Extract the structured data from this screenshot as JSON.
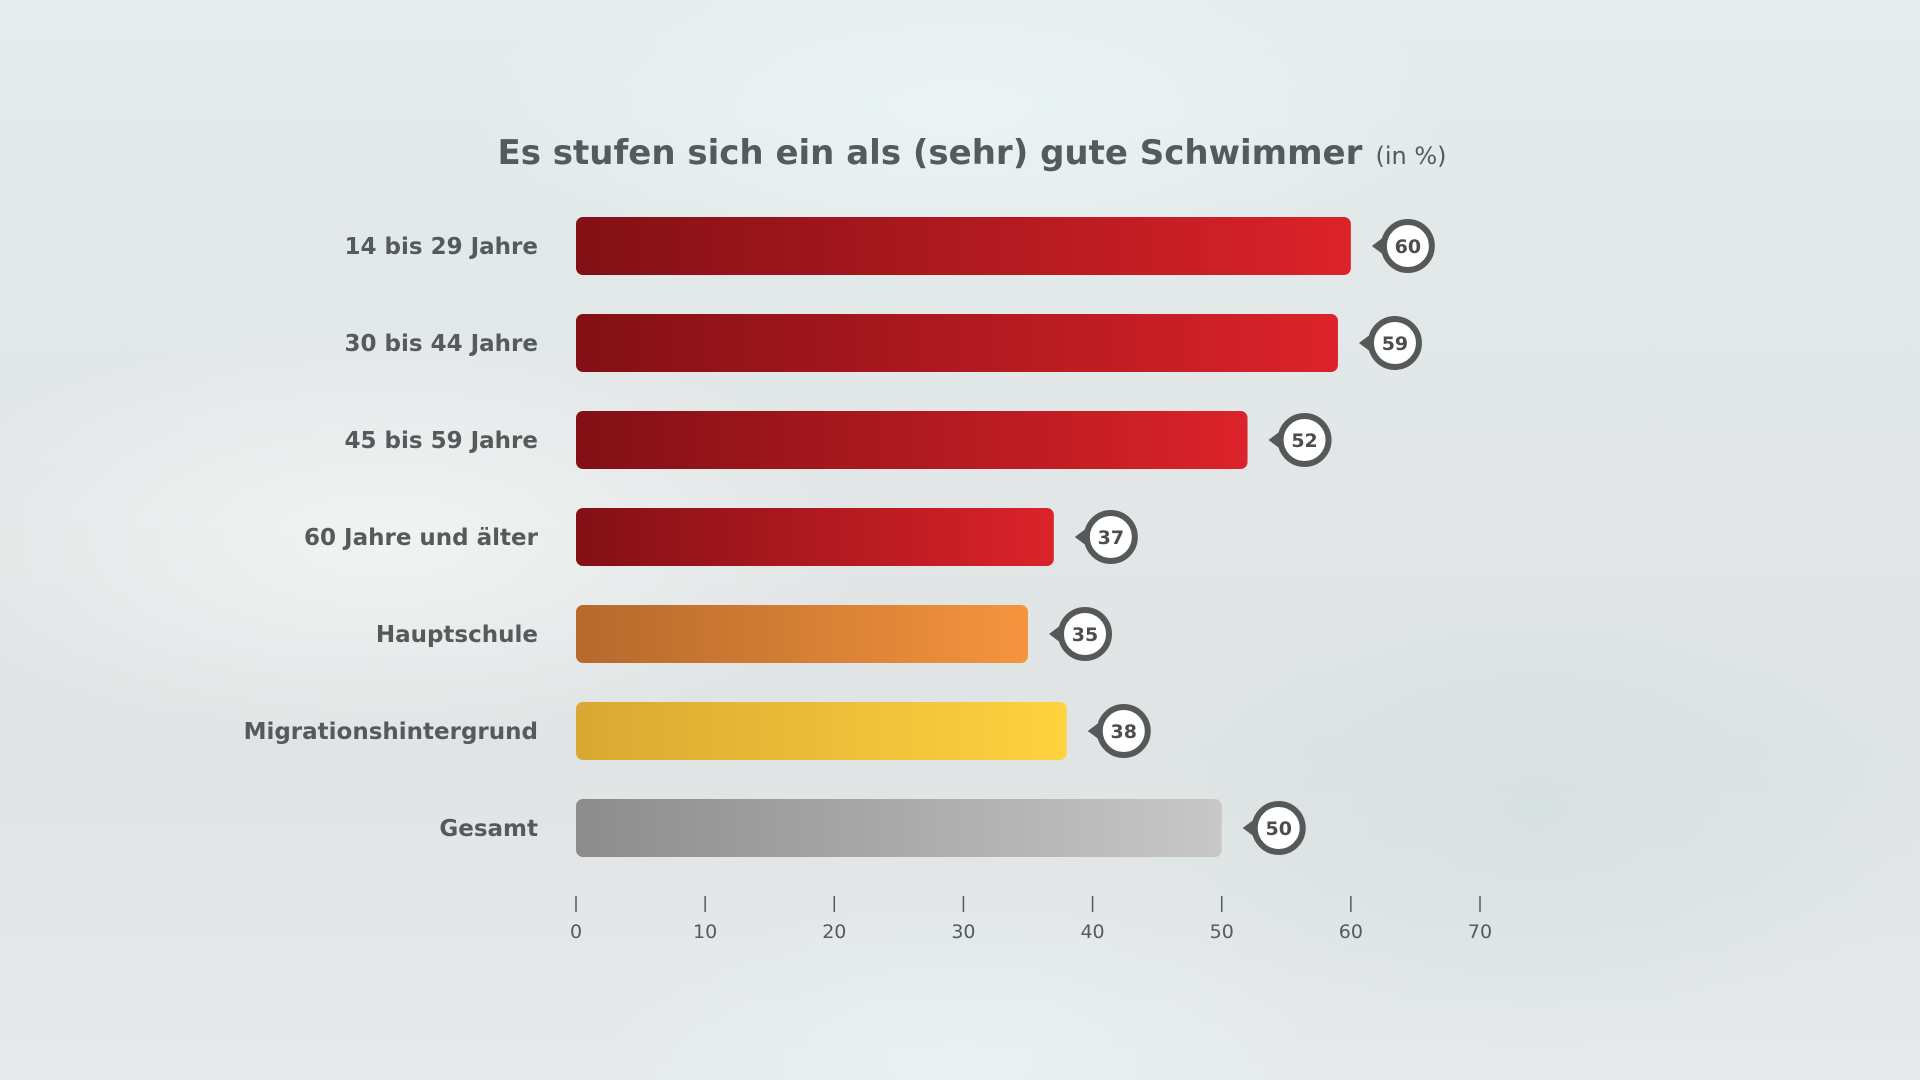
{
  "chart_data": {
    "type": "bar",
    "orientation": "horizontal",
    "title": "Es stufen sich ein als (sehr) gute Schwimmer",
    "title_suffix": "(in %)",
    "categories": [
      "14 bis 29 Jahre",
      "30 bis 44 Jahre",
      "45 bis 59 Jahre",
      "60 Jahre und älter",
      "Hauptschule",
      "Migrationshintergrund",
      "Gesamt"
    ],
    "values": [
      60,
      59,
      52,
      37,
      35,
      38,
      50
    ],
    "value_labels": [
      "60",
      "59",
      "52",
      "37",
      "35",
      "38",
      "50"
    ],
    "bar_colors": [
      [
        "#821015",
        "#dc222a"
      ],
      [
        "#821015",
        "#dc222a"
      ],
      [
        "#821015",
        "#dc222a"
      ],
      [
        "#821015",
        "#dc222a"
      ],
      [
        "#b5692c",
        "#f5943e"
      ],
      [
        "#d9a832",
        "#ffd23f"
      ],
      [
        "#8c8c8c",
        "#c8c8c8"
      ]
    ],
    "xlim": [
      0,
      70
    ],
    "xticks": [
      0,
      10,
      20,
      30,
      40,
      50,
      60,
      70
    ],
    "xtick_labels": [
      "0",
      "10",
      "20",
      "30",
      "40",
      "50",
      "60",
      "70"
    ],
    "grid": false,
    "legend": "none",
    "xlabel": "",
    "ylabel": ""
  }
}
